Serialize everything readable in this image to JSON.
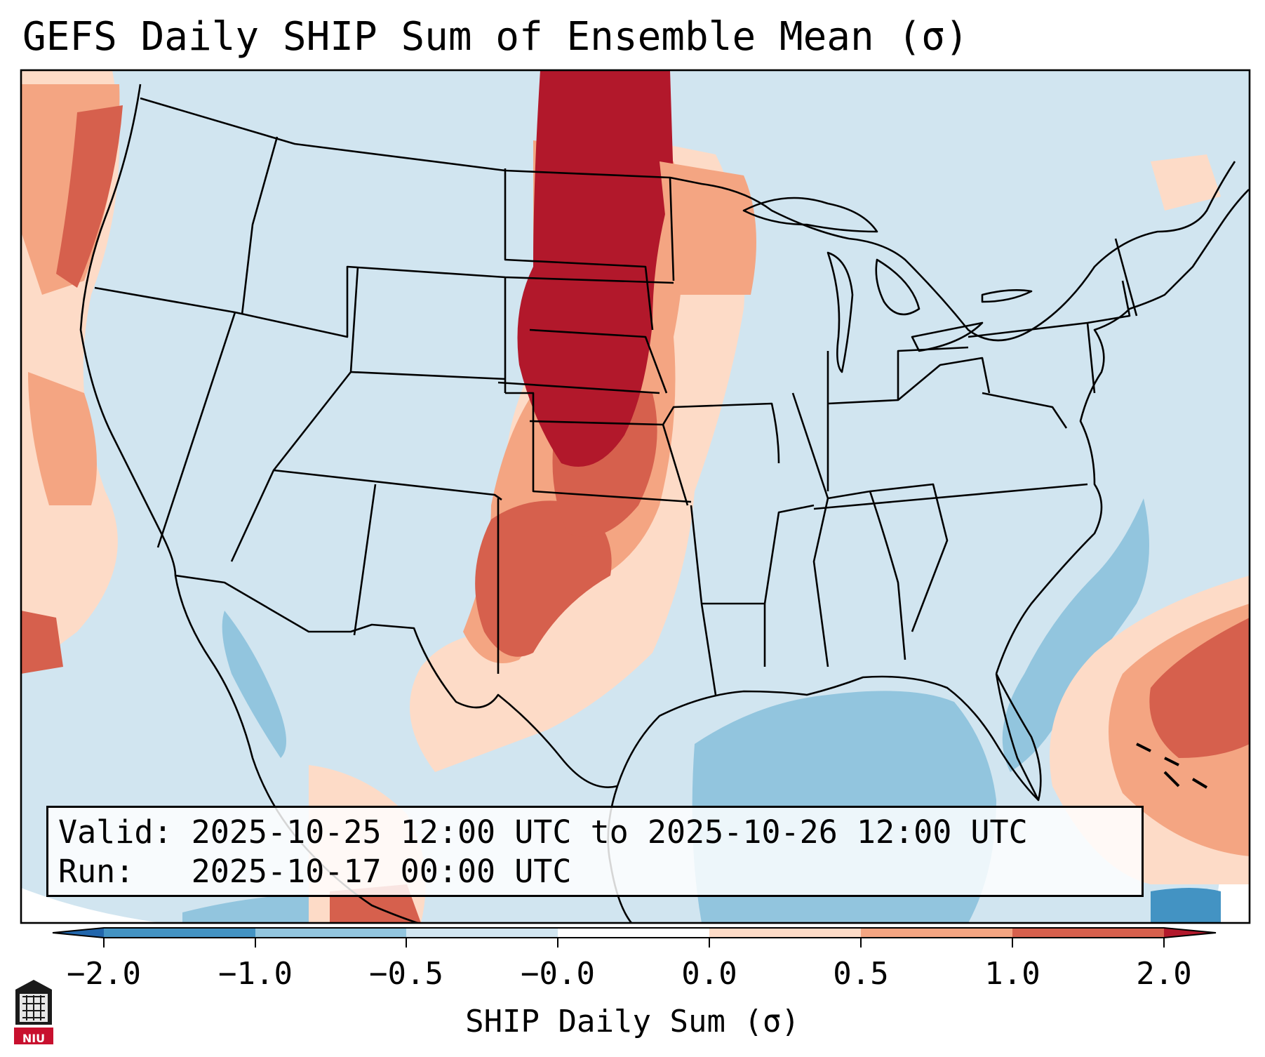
{
  "title": "GEFS Daily SHIP Sum of Ensemble Mean (σ)",
  "info": {
    "valid_line": "Valid: 2025-10-25 12:00 UTC to 2025-10-26 12:00 UTC",
    "run_line": "Run:   2025-10-17 00:00 UTC"
  },
  "colorbar": {
    "label": "SHIP Daily Sum (σ)",
    "ticks": [
      "−2.0",
      "−1.0",
      "−0.5",
      "−0.0",
      "0.0",
      "0.5",
      "1.0",
      "2.0"
    ],
    "colors": [
      "#2166ac",
      "#4393c3",
      "#92c5de",
      "#d1e5f0",
      "#fddbc7",
      "#f4a582",
      "#d6604d",
      "#b2182b"
    ]
  },
  "logo": {
    "text": "NIU"
  },
  "regions": [
    {
      "name": "north-plains-maximum",
      "level": "≥1.0"
    },
    {
      "name": "southern-plains-band",
      "level": "0.5 to 1.0"
    },
    {
      "name": "gulf-of-mexico-minimum",
      "level": "−0.5 to −1.0"
    },
    {
      "name": "western-atlantic-maximum",
      "level": "0.5 to 1.0"
    },
    {
      "name": "pacific-coast-band",
      "level": "0.5 to 1.0"
    }
  ]
}
